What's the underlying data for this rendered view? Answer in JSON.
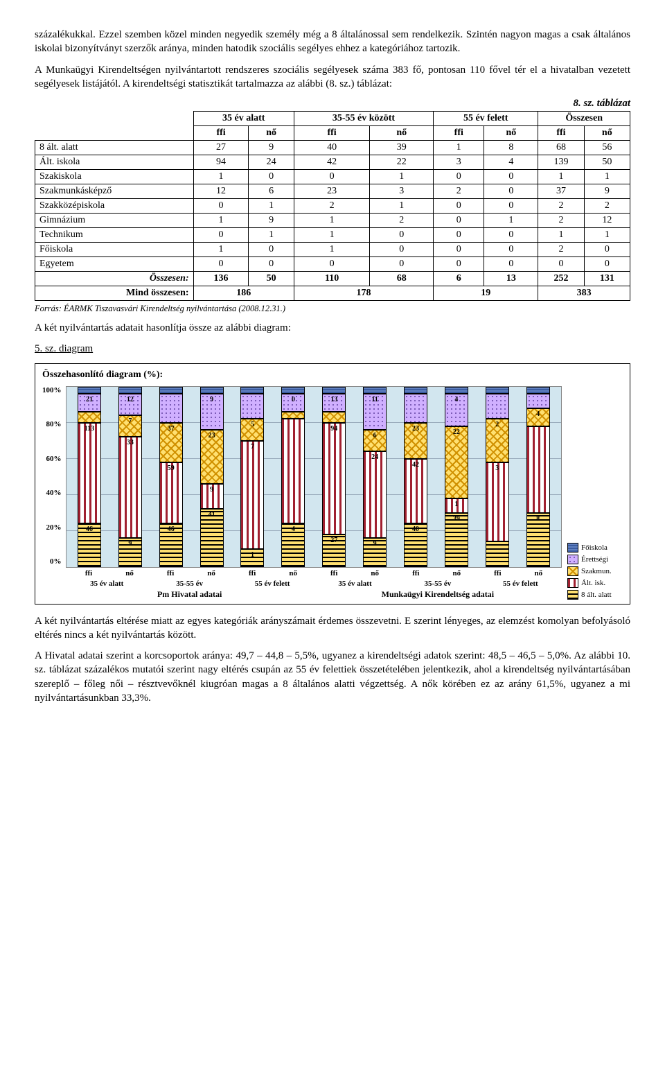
{
  "paragraphs": {
    "p1": "százalékukkal. Ezzel szemben közel minden negyedik személy még a 8 általánossal sem rendelkezik. Szintén nagyon magas a csak általános iskolai bizonyítványt szerzők aránya, minden hatodik szociális segélyes ehhez a kategóriához tartozik.",
    "p2": "A Munkaügyi Kirendeltségen nyilvántartott rendszeres szociális segélyesek száma 383 fő, pontosan 110 fővel tér el a hivatalban vezetett segélyesek listájától. A kirendeltségi statisztikát tartalmazza az alábbi (8. sz.) táblázat:",
    "caption_table": "8. sz. táblázat",
    "source": "Forrás: ÉARMK Tiszavasvári Kirendeltség nyilvántartása (2008.12.31.)",
    "p3": "A két nyilvántartás adatait hasonlítja össze az alábbi diagram:",
    "diagram_label": "5. sz. diagram",
    "chart_title": "Összehasonlító diagram (%):",
    "p4": "A két nyilvántartás eltérése miatt az egyes kategóriák arányszámait érdemes összevetni. E szerint lényeges, az elemzést komolyan befolyásoló eltérés nincs a két nyilvántartás között.",
    "p5": "A Hivatal adatai szerint a korcsoportok aránya: 49,7 – 44,8 – 5,5%, ugyanez a kirendeltségi adatok szerint: 48,5 – 46,5 – 5,0%. Az alábbi 10. sz. táblázat százalékos mutatói szerint nagy eltérés csupán az 55 év felettiek összetételében jelentkezik, ahol a kirendeltség nyilvántartásában szereplő – főleg női – résztvevőknél kiugróan magas a 8 általános alatti végzettség. A nők körében ez az arány 61,5%, ugyanez a mi nyilvántartásunkban 33,3%."
  },
  "table": {
    "head_groups": [
      "35 év alatt",
      "35-55 év között",
      "55 év felett",
      "Összesen"
    ],
    "sub_cols": [
      "ffi",
      "nő",
      "ffi",
      "nő",
      "ffi",
      "nő",
      "ffi",
      "nő"
    ],
    "rows": [
      {
        "label": "8 ált. alatt",
        "vals": [
          27,
          9,
          40,
          39,
          1,
          8,
          68,
          56
        ]
      },
      {
        "label": "Ált. iskola",
        "vals": [
          94,
          24,
          42,
          22,
          3,
          4,
          139,
          50
        ]
      },
      {
        "label": "Szakiskola",
        "vals": [
          1,
          0,
          0,
          1,
          0,
          0,
          1,
          1
        ]
      },
      {
        "label": "Szakmunkásképző",
        "vals": [
          12,
          6,
          23,
          3,
          2,
          0,
          37,
          9
        ]
      },
      {
        "label": "Szakközépiskola",
        "vals": [
          0,
          1,
          2,
          1,
          0,
          0,
          2,
          2
        ]
      },
      {
        "label": "Gimnázium",
        "vals": [
          1,
          9,
          1,
          2,
          0,
          1,
          2,
          12
        ]
      },
      {
        "label": "Technikum",
        "vals": [
          0,
          1,
          1,
          0,
          0,
          0,
          1,
          1
        ]
      },
      {
        "label": "Főiskola",
        "vals": [
          1,
          0,
          1,
          0,
          0,
          0,
          2,
          0
        ]
      },
      {
        "label": "Egyetem",
        "vals": [
          0,
          0,
          0,
          0,
          0,
          0,
          0,
          0
        ]
      }
    ],
    "sum_row": {
      "label": "Összesen:",
      "vals": [
        136,
        50,
        110,
        68,
        6,
        13,
        252,
        131
      ]
    },
    "grand_row": {
      "label": "Mind összesen:",
      "vals": [
        186,
        178,
        19,
        383
      ]
    }
  },
  "chart": {
    "y_ticks": [
      "100%",
      "80%",
      "60%",
      "40%",
      "20%",
      "0%"
    ],
    "legend": [
      {
        "label": "Főiskola",
        "class": "p-f1"
      },
      {
        "label": "Érettségi",
        "class": "p-erett"
      },
      {
        "label": "Szakmun.",
        "class": "p-szakm"
      },
      {
        "label": "Ált. isk.",
        "class": "p-alt"
      },
      {
        "label": "8 ált. alatt",
        "class": "p-8alt"
      }
    ],
    "columns": [
      {
        "x": "ffi",
        "segs": [
          {
            "v": 24,
            "c": "p-8alt",
            "lbl": "46"
          },
          {
            "v": 56,
            "c": "p-alt",
            "lbl": "113"
          },
          {
            "v": 6,
            "c": "p-szakm",
            "lbl": ""
          },
          {
            "v": 10,
            "c": "p-erett",
            "lbl": "21"
          },
          {
            "v": 4,
            "c": "p-f1",
            "lbl": ""
          }
        ]
      },
      {
        "x": "nő",
        "segs": [
          {
            "v": 16,
            "c": "p-8alt",
            "lbl": "9"
          },
          {
            "v": 56,
            "c": "p-alt",
            "lbl": "33"
          },
          {
            "v": 12,
            "c": "p-szakm",
            "lbl": "7"
          },
          {
            "v": 12,
            "c": "p-erett",
            "lbl": "12"
          },
          {
            "v": 4,
            "c": "p-f1",
            "lbl": ""
          }
        ]
      },
      {
        "x": "ffi",
        "segs": [
          {
            "v": 24,
            "c": "p-8alt",
            "lbl": "46"
          },
          {
            "v": 34,
            "c": "p-alt",
            "lbl": "59"
          },
          {
            "v": 22,
            "c": "p-szakm",
            "lbl": "37"
          },
          {
            "v": 16,
            "c": "p-erett",
            "lbl": ""
          },
          {
            "v": 4,
            "c": "p-f1",
            "lbl": ""
          }
        ]
      },
      {
        "x": "nő",
        "segs": [
          {
            "v": 32,
            "c": "p-8alt",
            "lbl": "41"
          },
          {
            "v": 14,
            "c": "p-alt",
            "lbl": "9"
          },
          {
            "v": 30,
            "c": "p-szakm",
            "lbl": "23"
          },
          {
            "v": 20,
            "c": "p-erett",
            "lbl": "9"
          },
          {
            "v": 4,
            "c": "p-f1",
            "lbl": ""
          }
        ]
      },
      {
        "x": "ffi",
        "segs": [
          {
            "v": 10,
            "c": "p-8alt",
            "lbl": "1"
          },
          {
            "v": 60,
            "c": "p-alt",
            "lbl": "7"
          },
          {
            "v": 12,
            "c": "p-szakm",
            "lbl": "5"
          },
          {
            "v": 14,
            "c": "p-erett",
            "lbl": ""
          },
          {
            "v": 4,
            "c": "p-f1",
            "lbl": ""
          }
        ]
      },
      {
        "x": "nő",
        "segs": [
          {
            "v": 24,
            "c": "p-8alt",
            "lbl": "4"
          },
          {
            "v": 58,
            "c": "p-alt",
            "lbl": ""
          },
          {
            "v": 4,
            "c": "p-szakm",
            "lbl": ""
          },
          {
            "v": 10,
            "c": "p-erett",
            "lbl": "0"
          },
          {
            "v": 4,
            "c": "p-f1",
            "lbl": ""
          }
        ]
      },
      {
        "x": "ffi",
        "segs": [
          {
            "v": 18,
            "c": "p-8alt",
            "lbl": "27"
          },
          {
            "v": 62,
            "c": "p-alt",
            "lbl": "94"
          },
          {
            "v": 6,
            "c": "p-szakm",
            "lbl": ""
          },
          {
            "v": 10,
            "c": "p-erett",
            "lbl": "13"
          },
          {
            "v": 4,
            "c": "p-f1",
            "lbl": ""
          }
        ]
      },
      {
        "x": "nő",
        "segs": [
          {
            "v": 16,
            "c": "p-8alt",
            "lbl": "9"
          },
          {
            "v": 48,
            "c": "p-alt",
            "lbl": "24"
          },
          {
            "v": 12,
            "c": "p-szakm",
            "lbl": "6"
          },
          {
            "v": 20,
            "c": "p-erett",
            "lbl": "11"
          },
          {
            "v": 4,
            "c": "p-f1",
            "lbl": ""
          }
        ]
      },
      {
        "x": "ffi",
        "segs": [
          {
            "v": 24,
            "c": "p-8alt",
            "lbl": "40"
          },
          {
            "v": 36,
            "c": "p-alt",
            "lbl": "42"
          },
          {
            "v": 20,
            "c": "p-szakm",
            "lbl": "23"
          },
          {
            "v": 16,
            "c": "p-erett",
            "lbl": ""
          },
          {
            "v": 4,
            "c": "p-f1",
            "lbl": ""
          }
        ]
      },
      {
        "x": "nő",
        "segs": [
          {
            "v": 30,
            "c": "p-8alt",
            "lbl": "39"
          },
          {
            "v": 8,
            "c": "p-alt",
            "lbl": "1"
          },
          {
            "v": 40,
            "c": "p-szakm",
            "lbl": "22"
          },
          {
            "v": 18,
            "c": "p-erett",
            "lbl": "4"
          },
          {
            "v": 4,
            "c": "p-f1",
            "lbl": ""
          }
        ]
      },
      {
        "x": "ffi",
        "segs": [
          {
            "v": 14,
            "c": "p-8alt",
            "lbl": ""
          },
          {
            "v": 44,
            "c": "p-alt",
            "lbl": "3"
          },
          {
            "v": 24,
            "c": "p-szakm",
            "lbl": "2"
          },
          {
            "v": 14,
            "c": "p-erett",
            "lbl": ""
          },
          {
            "v": 4,
            "c": "p-f1",
            "lbl": ""
          }
        ]
      },
      {
        "x": "nő",
        "segs": [
          {
            "v": 30,
            "c": "p-8alt",
            "lbl": "8"
          },
          {
            "v": 48,
            "c": "p-alt",
            "lbl": ""
          },
          {
            "v": 10,
            "c": "p-szakm",
            "lbl": "4"
          },
          {
            "v": 8,
            "c": "p-erett",
            "lbl": ""
          },
          {
            "v": 4,
            "c": "p-f1",
            "lbl": ""
          }
        ]
      }
    ],
    "x_groups": [
      "35 év alatt",
      "35-55 év",
      "55 év felett",
      "35 év alatt",
      "35-55 év",
      "55 év felett"
    ],
    "x_sources": [
      "Pm Hivatal adatai",
      "Munkaügyi Kirendeltség adatai"
    ]
  }
}
